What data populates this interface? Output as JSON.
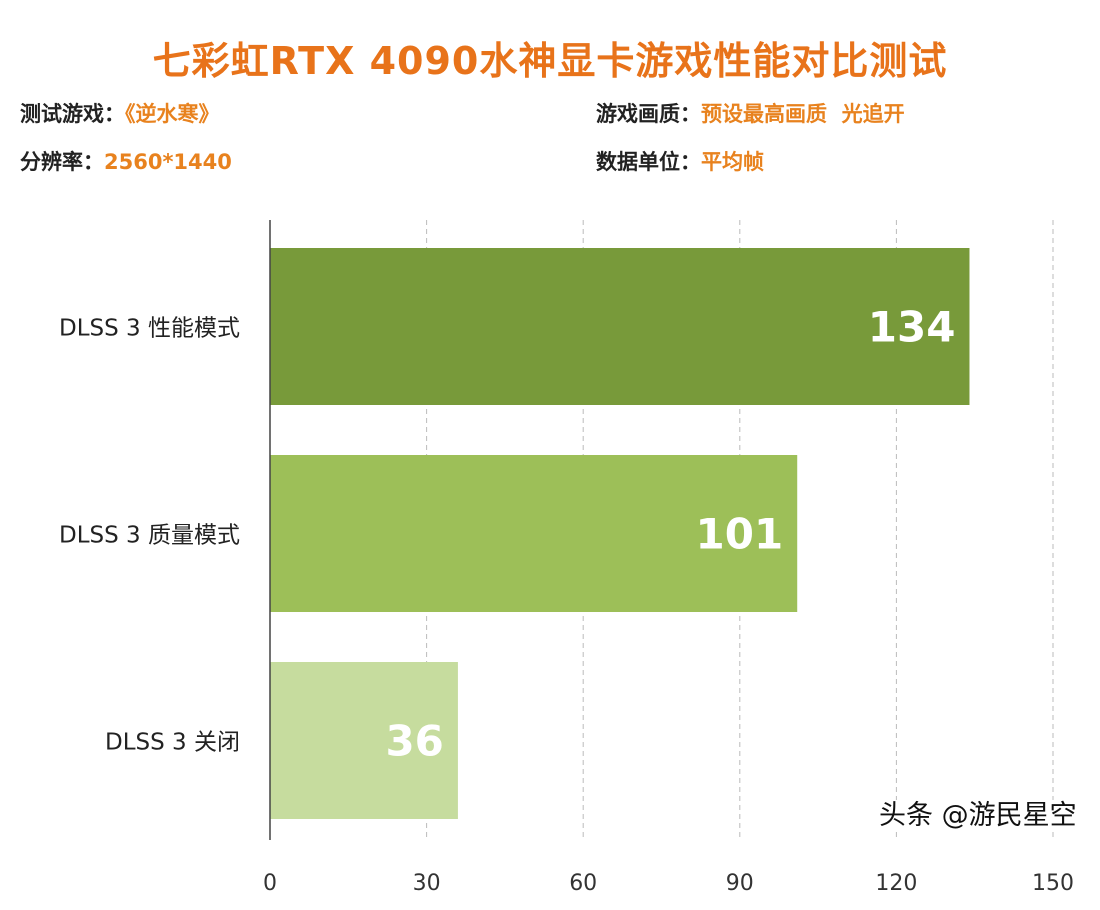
{
  "chart_data": {
    "type": "bar",
    "orientation": "horizontal",
    "title": "七彩虹RTX 4090水神显卡游戏性能对比测试",
    "info": {
      "game_label": "测试游戏：",
      "game": "《逆水寒》",
      "quality_label": "游戏画质：",
      "quality": "预设最高画质  光追开",
      "resolution_label": "分辨率：",
      "resolution": "2560*1440",
      "unit_label": "数据单位：",
      "unit": "平均帧"
    },
    "categories": [
      "DLSS 3 性能模式",
      "DLSS 3 质量模式",
      "DLSS 3 关闭"
    ],
    "values": [
      134,
      101,
      36
    ],
    "colors": [
      "#789a3a",
      "#9dbf58",
      "#c6dc9e"
    ],
    "xlim": [
      0,
      150
    ],
    "xticks": [
      0,
      30,
      60,
      90,
      120,
      150
    ],
    "grid": true,
    "legend": "none"
  },
  "watermark": "头条 @游民星空"
}
